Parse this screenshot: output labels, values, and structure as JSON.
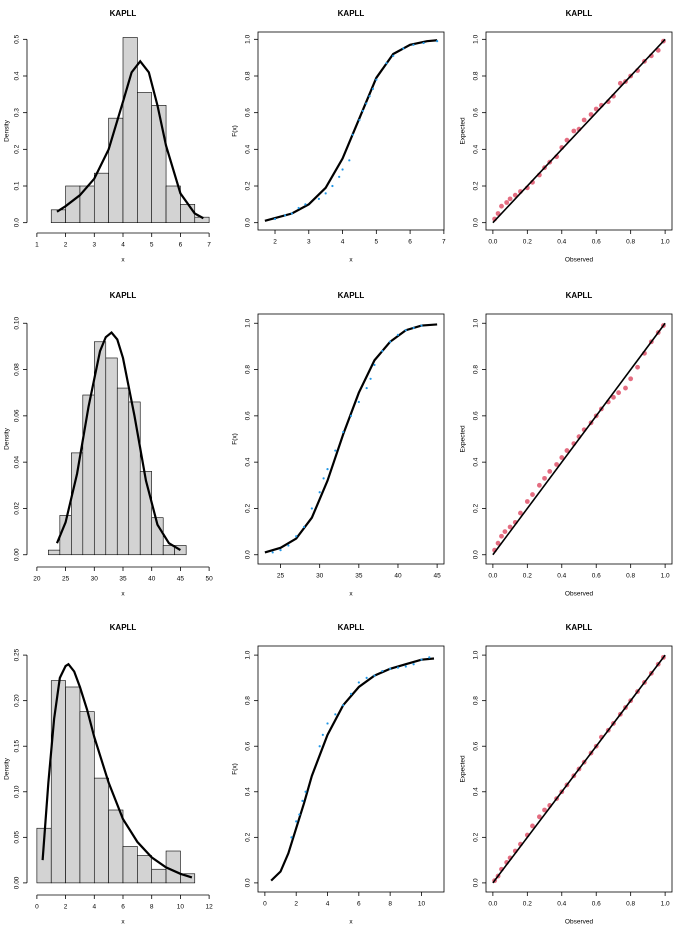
{
  "chart_data": [
    {
      "type": "histogram",
      "title": "KAPLL",
      "x_label": "x",
      "y_label": "Density",
      "bins": [
        1.5,
        2,
        2.5,
        3,
        3.5,
        4,
        4.5,
        5,
        5.5,
        6,
        6.5,
        7
      ],
      "counts": [
        0.035,
        0.1,
        0.1,
        0.135,
        0.285,
        0.505,
        0.355,
        0.32,
        0.1,
        0.05,
        0.015
      ],
      "color": "#d3d3d3",
      "curve": {
        "x": [
          1.7,
          2,
          2.5,
          3,
          3.5,
          4,
          4.3,
          4.6,
          4.9,
          5.2,
          5.5,
          6,
          6.5,
          6.8
        ],
        "values": [
          0.03,
          0.045,
          0.075,
          0.12,
          0.2,
          0.33,
          0.41,
          0.44,
          0.41,
          0.32,
          0.21,
          0.08,
          0.025,
          0.012
        ],
        "color": "#000000"
      },
      "xlim": [
        1,
        7
      ],
      "xticks": [
        1,
        2,
        3,
        4,
        5,
        6,
        7
      ],
      "ylim": [
        0,
        0.5
      ],
      "yticks": [
        {
          "value": 0,
          "label": "0.0"
        },
        0.1,
        0.2,
        0.3,
        0.4,
        0.5
      ]
    },
    {
      "type": "cdf",
      "title": "KAPLL",
      "x_label": "x",
      "y_label": "F(x)",
      "points": {
        "x": [
          2.0,
          2.3,
          2.5,
          2.7,
          2.9,
          3.3,
          3.5,
          3.7,
          3.9,
          4.0,
          4.2,
          4.3,
          4.5,
          4.6,
          4.7,
          4.8,
          4.9,
          5.0,
          5.3,
          5.5,
          5.8,
          6.1,
          6.4,
          6.8
        ],
        "values": [
          0.02,
          0.04,
          0.05,
          0.08,
          0.1,
          0.13,
          0.16,
          0.2,
          0.25,
          0.29,
          0.34,
          0.48,
          0.56,
          0.61,
          0.65,
          0.69,
          0.73,
          0.78,
          0.87,
          0.91,
          0.95,
          0.97,
          0.98,
          0.99
        ],
        "color": "#2297e6"
      },
      "curve": {
        "x": [
          1.7,
          2,
          2.5,
          3,
          3.5,
          4,
          4.5,
          5,
          5.5,
          6,
          6.5,
          6.8
        ],
        "values": [
          0.01,
          0.025,
          0.05,
          0.1,
          0.19,
          0.35,
          0.57,
          0.79,
          0.92,
          0.97,
          0.99,
          0.995
        ],
        "color": "#000000"
      },
      "xlim": [
        1.7,
        6.8
      ],
      "xticks": [
        2,
        3,
        4,
        5,
        6,
        7
      ],
      "ylim": [
        0,
        1
      ],
      "yticks": [
        {
          "value": 0,
          "label": "0.0"
        },
        0.2,
        0.4,
        0.6,
        0.8,
        {
          "value": 1,
          "label": "1.0"
        }
      ]
    },
    {
      "type": "pp",
      "title": "KAPLL",
      "x_label": "Observed",
      "y_label": "Expected",
      "points": {
        "x": [
          0.01,
          0.03,
          0.05,
          0.08,
          0.1,
          0.13,
          0.16,
          0.2,
          0.23,
          0.27,
          0.3,
          0.33,
          0.37,
          0.4,
          0.43,
          0.47,
          0.5,
          0.53,
          0.57,
          0.6,
          0.63,
          0.67,
          0.7,
          0.74,
          0.77,
          0.8,
          0.84,
          0.88,
          0.92,
          0.96,
          0.99
        ],
        "values": [
          0.02,
          0.05,
          0.09,
          0.11,
          0.13,
          0.15,
          0.17,
          0.19,
          0.22,
          0.26,
          0.3,
          0.33,
          0.36,
          0.41,
          0.45,
          0.5,
          0.51,
          0.56,
          0.59,
          0.62,
          0.64,
          0.66,
          0.69,
          0.76,
          0.77,
          0.8,
          0.83,
          0.88,
          0.91,
          0.94,
          0.99
        ],
        "color": "#df536b"
      },
      "curve": {
        "x": [
          0,
          1
        ],
        "values": [
          0,
          1
        ],
        "color": "#000000"
      },
      "xlim": [
        0,
        1
      ],
      "xticks": [
        {
          "value": 0,
          "label": "0.0"
        },
        0.2,
        0.4,
        0.6,
        0.8,
        {
          "value": 1,
          "label": "1.0"
        }
      ],
      "ylim": [
        0,
        1
      ],
      "yticks": [
        {
          "value": 0,
          "label": "0.0"
        },
        0.2,
        0.4,
        0.6,
        0.8,
        {
          "value": 1,
          "label": "1.0"
        }
      ]
    },
    {
      "type": "histogram",
      "title": "KAPLL",
      "x_label": "x",
      "y_label": "Density",
      "bins": [
        22,
        24,
        26,
        28,
        30,
        32,
        34,
        36,
        38,
        40,
        42,
        44,
        46
      ],
      "counts": [
        0.002,
        0.017,
        0.044,
        0.069,
        0.092,
        0.085,
        0.072,
        0.066,
        0.036,
        0.016,
        0.004,
        0.004
      ],
      "color": "#d3d3d3",
      "curve": {
        "x": [
          23.5,
          25,
          27,
          29,
          31,
          32,
          33,
          34,
          35,
          37,
          39,
          41,
          43,
          45
        ],
        "values": [
          0.005,
          0.014,
          0.035,
          0.064,
          0.088,
          0.094,
          0.096,
          0.093,
          0.085,
          0.06,
          0.032,
          0.013,
          0.005,
          0.002
        ],
        "color": "#000000"
      },
      "xlim": [
        20,
        50
      ],
      "xticks": [
        20,
        25,
        30,
        35,
        40,
        45,
        50
      ],
      "ylim": [
        0,
        0.1
      ],
      "yticks": [
        {
          "value": 0,
          "label": "0.00"
        },
        {
          "value": 0.02,
          "label": "0.02"
        },
        {
          "value": 0.04,
          "label": "0.04"
        },
        {
          "value": 0.06,
          "label": "0.06"
        },
        {
          "value": 0.08,
          "label": "0.08"
        },
        {
          "value": 0.1,
          "label": "0.10"
        }
      ]
    },
    {
      "type": "cdf",
      "title": "KAPLL",
      "x_label": "x",
      "y_label": "F(x)",
      "points": {
        "x": [
          24,
          25,
          26,
          27,
          28,
          29,
          30,
          30.5,
          31,
          32,
          33,
          34,
          35,
          36,
          36.5,
          37,
          38,
          39,
          40,
          41,
          42,
          43
        ],
        "values": [
          0.01,
          0.02,
          0.04,
          0.08,
          0.12,
          0.2,
          0.27,
          0.33,
          0.37,
          0.45,
          0.53,
          0.6,
          0.66,
          0.72,
          0.76,
          0.82,
          0.88,
          0.92,
          0.95,
          0.97,
          0.98,
          0.99
        ],
        "color": "#2297e6"
      },
      "curve": {
        "x": [
          23,
          25,
          27,
          29,
          31,
          33,
          35,
          37,
          39,
          41,
          43,
          45
        ],
        "values": [
          0.01,
          0.03,
          0.07,
          0.16,
          0.32,
          0.52,
          0.7,
          0.84,
          0.92,
          0.97,
          0.99,
          0.995
        ],
        "color": "#000000"
      },
      "xlim": [
        23,
        45
      ],
      "xticks": [
        25,
        30,
        35,
        40,
        45
      ],
      "ylim": [
        0,
        1
      ],
      "yticks": [
        {
          "value": 0,
          "label": "0.0"
        },
        0.2,
        0.4,
        0.6,
        0.8,
        {
          "value": 1,
          "label": "1.0"
        }
      ]
    },
    {
      "type": "pp",
      "title": "KAPLL",
      "x_label": "Observed",
      "y_label": "Expected",
      "points": {
        "x": [
          0.01,
          0.03,
          0.05,
          0.07,
          0.1,
          0.13,
          0.16,
          0.2,
          0.23,
          0.27,
          0.3,
          0.33,
          0.37,
          0.4,
          0.43,
          0.47,
          0.5,
          0.53,
          0.57,
          0.6,
          0.63,
          0.67,
          0.7,
          0.73,
          0.77,
          0.8,
          0.84,
          0.88,
          0.92,
          0.96,
          0.99
        ],
        "values": [
          0.02,
          0.05,
          0.08,
          0.1,
          0.12,
          0.14,
          0.18,
          0.23,
          0.26,
          0.3,
          0.33,
          0.36,
          0.39,
          0.42,
          0.45,
          0.48,
          0.51,
          0.54,
          0.57,
          0.6,
          0.63,
          0.66,
          0.68,
          0.7,
          0.72,
          0.76,
          0.81,
          0.87,
          0.92,
          0.96,
          0.99
        ],
        "color": "#df536b"
      },
      "curve": {
        "x": [
          0,
          1
        ],
        "values": [
          0,
          1
        ],
        "color": "#000000"
      },
      "xlim": [
        0,
        1
      ],
      "xticks": [
        {
          "value": 0,
          "label": "0.0"
        },
        0.2,
        0.4,
        0.6,
        0.8,
        {
          "value": 1,
          "label": "1.0"
        }
      ],
      "ylim": [
        0,
        1
      ],
      "yticks": [
        {
          "value": 0,
          "label": "0.0"
        },
        0.2,
        0.4,
        0.6,
        0.8,
        {
          "value": 1,
          "label": "1.0"
        }
      ]
    },
    {
      "type": "histogram",
      "title": "KAPLL",
      "x_label": "x",
      "y_label": "Density",
      "bins": [
        0,
        1,
        2,
        3,
        4,
        5,
        6,
        7,
        8,
        9,
        10,
        11
      ],
      "counts": [
        0.06,
        0.222,
        0.215,
        0.188,
        0.115,
        0.08,
        0.04,
        0.03,
        0.015,
        0.035,
        0.01
      ],
      "color": "#d3d3d3",
      "curve": {
        "x": [
          0.4,
          0.8,
          1.2,
          1.6,
          2.0,
          2.2,
          2.6,
          3.0,
          3.5,
          4,
          5,
          6,
          7,
          8,
          9,
          10,
          10.8
        ],
        "values": [
          0.025,
          0.11,
          0.18,
          0.225,
          0.238,
          0.24,
          0.232,
          0.215,
          0.19,
          0.16,
          0.11,
          0.07,
          0.045,
          0.028,
          0.017,
          0.01,
          0.006
        ],
        "color": "#000000"
      },
      "xlim": [
        0,
        12
      ],
      "xticks": [
        0,
        2,
        4,
        6,
        8,
        10,
        12
      ],
      "ylim": [
        0,
        0.25
      ],
      "yticks": [
        {
          "value": 0,
          "label": "0.00"
        },
        {
          "value": 0.05,
          "label": "0.05"
        },
        {
          "value": 0.1,
          "label": "0.10"
        },
        {
          "value": 0.15,
          "label": "0.15"
        },
        {
          "value": 0.2,
          "label": "0.20"
        },
        {
          "value": 0.25,
          "label": "0.25"
        }
      ]
    },
    {
      "type": "cdf",
      "title": "KAPLL",
      "x_label": "x",
      "y_label": "F(x)",
      "points": {
        "x": [
          1.7,
          2,
          2.2,
          2.4,
          2.6,
          3.5,
          3.7,
          4,
          4.5,
          5,
          5.5,
          6,
          6.5,
          7,
          7.5,
          8,
          8.5,
          9,
          9.5,
          10,
          10.5
        ],
        "values": [
          0.2,
          0.27,
          0.3,
          0.36,
          0.4,
          0.6,
          0.65,
          0.7,
          0.74,
          0.78,
          0.83,
          0.88,
          0.9,
          0.91,
          0.93,
          0.94,
          0.945,
          0.95,
          0.96,
          0.98,
          0.99
        ],
        "color": "#2297e6"
      },
      "curve": {
        "x": [
          0.4,
          1,
          1.5,
          2,
          2.5,
          3,
          4,
          5,
          6,
          7,
          8,
          9,
          10,
          10.8
        ],
        "values": [
          0.01,
          0.05,
          0.13,
          0.24,
          0.35,
          0.47,
          0.65,
          0.78,
          0.86,
          0.91,
          0.94,
          0.96,
          0.98,
          0.985
        ],
        "color": "#000000"
      },
      "xlim": [
        0,
        11
      ],
      "xticks": [
        0,
        2,
        4,
        6,
        8,
        10
      ],
      "ylim": [
        0,
        1
      ],
      "yticks": [
        {
          "value": 0,
          "label": "0.0"
        },
        0.2,
        0.4,
        0.6,
        0.8,
        {
          "value": 1,
          "label": "1.0"
        }
      ]
    },
    {
      "type": "pp",
      "title": "KAPLL",
      "x_label": "Observed",
      "y_label": "Expected",
      "points": {
        "x": [
          0.01,
          0.03,
          0.05,
          0.08,
          0.1,
          0.13,
          0.16,
          0.2,
          0.23,
          0.27,
          0.3,
          0.33,
          0.37,
          0.4,
          0.43,
          0.47,
          0.5,
          0.53,
          0.57,
          0.6,
          0.63,
          0.67,
          0.7,
          0.74,
          0.77,
          0.8,
          0.84,
          0.88,
          0.92,
          0.96,
          0.99
        ],
        "values": [
          0.01,
          0.03,
          0.06,
          0.09,
          0.11,
          0.14,
          0.17,
          0.21,
          0.25,
          0.29,
          0.32,
          0.34,
          0.37,
          0.4,
          0.43,
          0.47,
          0.5,
          0.53,
          0.57,
          0.6,
          0.64,
          0.67,
          0.7,
          0.74,
          0.77,
          0.8,
          0.84,
          0.88,
          0.92,
          0.96,
          0.99
        ],
        "color": "#df536b"
      },
      "curve": {
        "x": [
          0,
          1
        ],
        "values": [
          0,
          1
        ],
        "color": "#000000"
      },
      "xlim": [
        0,
        1
      ],
      "xticks": [
        {
          "value": 0,
          "label": "0.0"
        },
        0.2,
        0.4,
        0.6,
        0.8,
        {
          "value": 1,
          "label": "1.0"
        }
      ],
      "ylim": [
        0,
        1
      ],
      "yticks": [
        {
          "value": 0,
          "label": "0.0"
        },
        0.2,
        0.4,
        0.6,
        0.8,
        {
          "value": 1,
          "label": "1.0"
        }
      ]
    }
  ]
}
